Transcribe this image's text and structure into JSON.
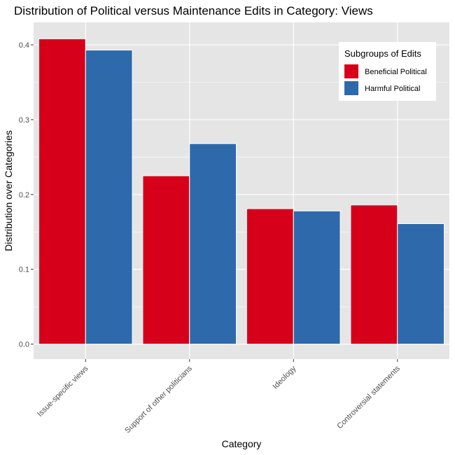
{
  "chart_data": {
    "type": "bar",
    "title": "Distribution of Political versus Maintenance Edits in Category: Views",
    "xlabel": "Category",
    "ylabel": "Distribution over Categories",
    "categories": [
      "Issue-specific views",
      "Support of other politicians",
      "Ideology",
      "Controversial statements"
    ],
    "series": [
      {
        "name": "Beneficial Political",
        "color": "#d7001a",
        "values": [
          0.408,
          0.225,
          0.181,
          0.186
        ]
      },
      {
        "name": "Harmful Political",
        "color": "#2e6aab",
        "values": [
          0.393,
          0.268,
          0.178,
          0.161
        ]
      }
    ],
    "ylim": [
      -0.02,
      0.43
    ],
    "yticks": [
      0.0,
      0.1,
      0.2,
      0.3,
      0.4
    ],
    "ytick_labels": [
      "0.0",
      "0.1",
      "0.2",
      "0.3",
      "0.4"
    ],
    "grid": true,
    "legend": {
      "title": "Subgroups of Edits",
      "position": "top-right"
    },
    "panel_background": "#e5e5e5",
    "grid_color": "#ffffff"
  }
}
